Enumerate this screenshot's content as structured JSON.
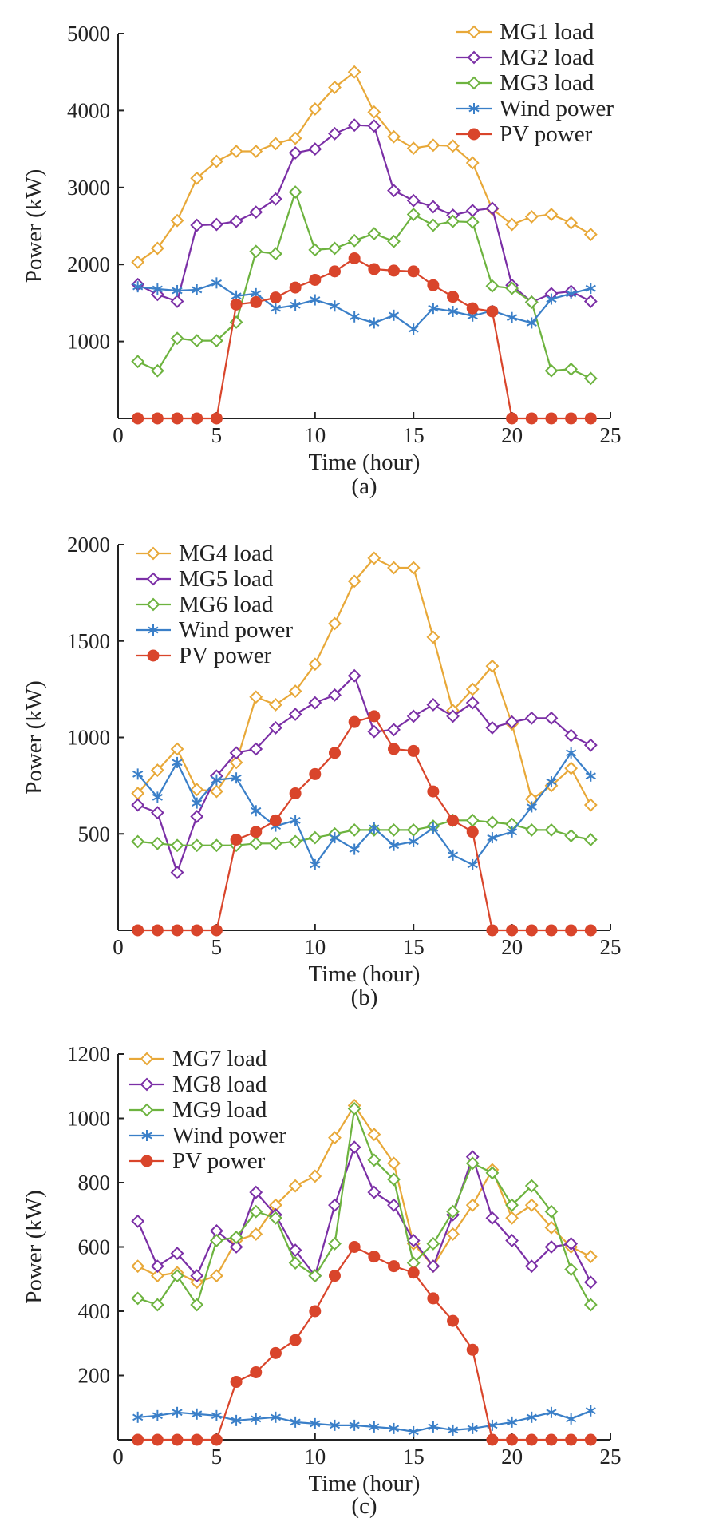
{
  "colors": {
    "mg_a": "#E8A838",
    "mg_b": "#7B2FA6",
    "mg_c": "#6DB33F",
    "wind": "#3A7FC8",
    "pv": "#D9452B",
    "axis": "#222222"
  },
  "chart_data": [
    {
      "type": "line",
      "title": "",
      "panel_label": "(a)",
      "xlabel": "Time (hour)",
      "ylabel": "Power (kW)",
      "xlim": [
        0,
        25
      ],
      "ylim": [
        0,
        5000
      ],
      "xticks": [
        0,
        5,
        10,
        15,
        20,
        25
      ],
      "xtick_labels": [
        "0",
        "5",
        "10",
        "15",
        "20",
        "25"
      ],
      "yticks": [
        1000,
        2000,
        3000,
        4000,
        5000
      ],
      "ytick_labels": [
        "1000",
        "2000",
        "3000",
        "4000",
        "5000"
      ],
      "grid": false,
      "legend_position": "top-right",
      "x": [
        1,
        2,
        3,
        4,
        5,
        6,
        7,
        8,
        9,
        10,
        11,
        12,
        13,
        14,
        15,
        16,
        17,
        18,
        19,
        20,
        21,
        22,
        23,
        24
      ],
      "series": [
        {
          "name": "MG1 load",
          "color_key": "mg_a",
          "marker": "diamond",
          "values": [
            2030,
            2210,
            2570,
            3120,
            3340,
            3470,
            3470,
            3570,
            3640,
            4020,
            4300,
            4500,
            3980,
            3660,
            3510,
            3550,
            3540,
            3320,
            2720,
            2520,
            2620,
            2650,
            2540,
            2390
          ]
        },
        {
          "name": "MG2 load",
          "color_key": "mg_b",
          "marker": "diamond",
          "values": [
            1740,
            1610,
            1520,
            2510,
            2520,
            2560,
            2680,
            2850,
            3450,
            3500,
            3700,
            3810,
            3800,
            2960,
            2830,
            2750,
            2640,
            2700,
            2730,
            1730,
            1510,
            1620,
            1650,
            1520
          ]
        },
        {
          "name": "MG3 load",
          "color_key": "mg_c",
          "marker": "diamond",
          "values": [
            740,
            620,
            1040,
            1010,
            1010,
            1250,
            2170,
            2140,
            2940,
            2190,
            2210,
            2310,
            2400,
            2300,
            2650,
            2510,
            2560,
            2550,
            1720,
            1690,
            1510,
            620,
            640,
            520
          ]
        },
        {
          "name": "Wind power",
          "color_key": "wind",
          "marker": "star",
          "values": [
            1710,
            1680,
            1660,
            1670,
            1760,
            1590,
            1620,
            1430,
            1470,
            1540,
            1460,
            1320,
            1240,
            1340,
            1160,
            1430,
            1390,
            1330,
            1400,
            1310,
            1240,
            1550,
            1620,
            1690
          ]
        },
        {
          "name": "PV power",
          "color_key": "pv",
          "marker": "circle",
          "values": [
            0,
            0,
            0,
            0,
            0,
            1480,
            1510,
            1570,
            1700,
            1800,
            1910,
            2080,
            1940,
            1920,
            1910,
            1730,
            1580,
            1430,
            1390,
            0,
            0,
            0,
            0,
            0
          ]
        }
      ]
    },
    {
      "type": "line",
      "title": "",
      "panel_label": "(b)",
      "xlabel": "Time (hour)",
      "ylabel": "Power (kW)",
      "xlim": [
        0,
        25
      ],
      "ylim": [
        0,
        2000
      ],
      "xticks": [
        0,
        5,
        10,
        15,
        20,
        25
      ],
      "xtick_labels": [
        "0",
        "5",
        "10",
        "15",
        "20",
        "25"
      ],
      "yticks": [
        500,
        1000,
        1500,
        2000
      ],
      "ytick_labels": [
        "500",
        "1000",
        "1500",
        "2000"
      ],
      "grid": false,
      "legend_position": "top-left",
      "x": [
        1,
        2,
        3,
        4,
        5,
        6,
        7,
        8,
        9,
        10,
        11,
        12,
        13,
        14,
        15,
        16,
        17,
        18,
        19,
        20,
        21,
        22,
        23,
        24
      ],
      "series": [
        {
          "name": "MG4 load",
          "color_key": "mg_a",
          "marker": "diamond",
          "values": [
            710,
            830,
            940,
            730,
            720,
            870,
            1210,
            1170,
            1240,
            1380,
            1590,
            1810,
            1930,
            1880,
            1880,
            1520,
            1140,
            1250,
            1370,
            1070,
            680,
            750,
            840,
            650
          ]
        },
        {
          "name": "MG5 load",
          "color_key": "mg_b",
          "marker": "diamond",
          "values": [
            650,
            610,
            300,
            590,
            800,
            920,
            940,
            1050,
            1120,
            1180,
            1220,
            1320,
            1030,
            1040,
            1110,
            1170,
            1110,
            1180,
            1050,
            1080,
            1100,
            1100,
            1010,
            960
          ]
        },
        {
          "name": "MG6 load",
          "color_key": "mg_c",
          "marker": "diamond",
          "values": [
            460,
            450,
            440,
            440,
            440,
            440,
            450,
            450,
            460,
            480,
            500,
            520,
            520,
            520,
            520,
            540,
            570,
            570,
            560,
            550,
            520,
            520,
            490,
            470
          ]
        },
        {
          "name": "Wind power",
          "color_key": "wind",
          "marker": "star",
          "values": [
            810,
            690,
            870,
            660,
            780,
            790,
            620,
            540,
            570,
            340,
            480,
            420,
            530,
            440,
            460,
            530,
            390,
            340,
            480,
            510,
            640,
            770,
            920,
            800
          ]
        },
        {
          "name": "PV power",
          "color_key": "pv",
          "marker": "circle",
          "values": [
            0,
            0,
            0,
            0,
            0,
            470,
            510,
            570,
            710,
            810,
            920,
            1080,
            1110,
            940,
            930,
            720,
            570,
            510,
            0,
            0,
            0,
            0,
            0,
            0
          ]
        }
      ]
    },
    {
      "type": "line",
      "title": "",
      "panel_label": "(c)",
      "xlabel": "Time (hour)",
      "ylabel": "Power (kW)",
      "xlim": [
        0,
        25
      ],
      "ylim": [
        0,
        1200
      ],
      "xticks": [
        0,
        5,
        10,
        15,
        20,
        25
      ],
      "xtick_labels": [
        "0",
        "5",
        "10",
        "15",
        "20",
        "25"
      ],
      "yticks": [
        200,
        400,
        600,
        800,
        1000,
        1200
      ],
      "ytick_labels": [
        "200",
        "400",
        "600",
        "800",
        "1000",
        "1200"
      ],
      "grid": false,
      "legend_position": "top-left",
      "x": [
        1,
        2,
        3,
        4,
        5,
        6,
        7,
        8,
        9,
        10,
        11,
        12,
        13,
        14,
        15,
        16,
        17,
        18,
        19,
        20,
        21,
        22,
        23,
        24
      ],
      "series": [
        {
          "name": "MG7 load",
          "color_key": "mg_a",
          "marker": "diamond",
          "values": [
            540,
            510,
            520,
            490,
            510,
            620,
            640,
            730,
            790,
            820,
            940,
            1040,
            950,
            860,
            610,
            540,
            640,
            730,
            840,
            690,
            730,
            660,
            600,
            570
          ]
        },
        {
          "name": "MG8 load",
          "color_key": "mg_b",
          "marker": "diamond",
          "values": [
            680,
            540,
            580,
            510,
            650,
            600,
            770,
            700,
            590,
            510,
            730,
            910,
            770,
            730,
            620,
            540,
            700,
            880,
            690,
            620,
            540,
            600,
            610,
            490
          ]
        },
        {
          "name": "MG9 load",
          "color_key": "mg_c",
          "marker": "diamond",
          "values": [
            440,
            420,
            510,
            420,
            620,
            630,
            710,
            690,
            550,
            510,
            610,
            1030,
            870,
            810,
            550,
            610,
            710,
            860,
            830,
            730,
            790,
            710,
            530,
            420
          ]
        },
        {
          "name": "Wind power",
          "color_key": "wind",
          "marker": "star",
          "values": [
            70,
            75,
            85,
            80,
            75,
            60,
            65,
            70,
            55,
            50,
            45,
            45,
            40,
            35,
            25,
            40,
            30,
            35,
            45,
            55,
            70,
            85,
            65,
            90
          ]
        },
        {
          "name": "PV power",
          "color_key": "pv",
          "marker": "circle",
          "values": [
            0,
            0,
            0,
            0,
            0,
            180,
            210,
            270,
            310,
            400,
            510,
            600,
            570,
            540,
            520,
            440,
            370,
            280,
            0,
            0,
            0,
            0,
            0,
            0
          ]
        }
      ]
    }
  ]
}
